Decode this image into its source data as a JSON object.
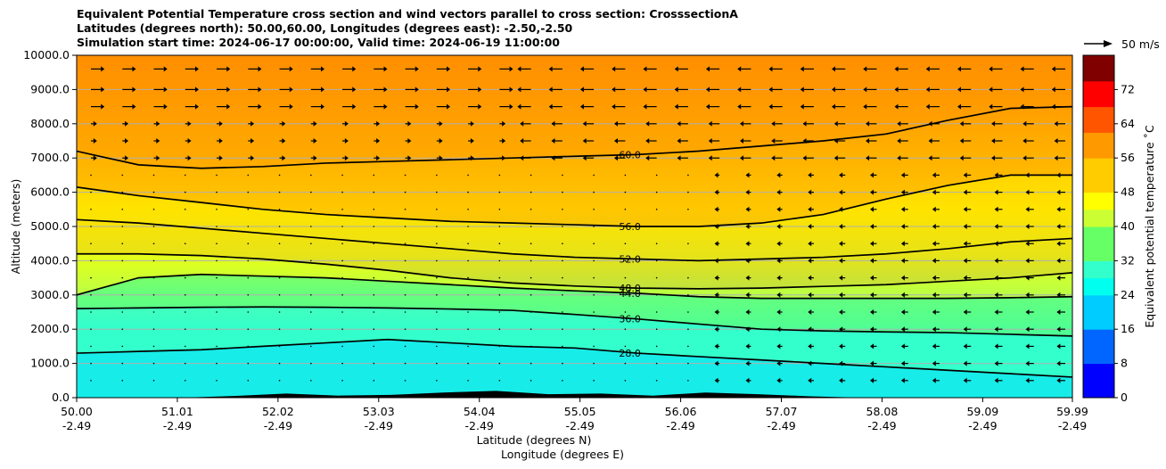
{
  "title_lines": [
    "Equivalent Potential Temperature cross section and wind vectors parallel to cross section: CrosssectionA",
    "Latitudes (degrees north): 50.00,60.00, Longitudes (degrees east): -2.50,-2.50",
    "Simulation start time: 2024-06-17 00:00:00, Valid time: 2024-06-19 11:00:00"
  ],
  "chart_data": {
    "type": "heatmap",
    "ylabel": "Altitude (meters)",
    "xlabel_lines": [
      "Latitude (degrees N)",
      "Longitude (degrees E)"
    ],
    "ylim": [
      0,
      10000
    ],
    "yticks": [
      "0.0",
      "1000.0",
      "2000.0",
      "3000.0",
      "4000.0",
      "5000.0",
      "6000.0",
      "7000.0",
      "8000.0",
      "9000.0",
      "10000.0"
    ],
    "ytick_values": [
      0,
      1000,
      2000,
      3000,
      4000,
      5000,
      6000,
      7000,
      8000,
      9000,
      10000
    ],
    "xlim": [
      50.0,
      59.99
    ],
    "xtick_lat_labels": [
      "50.00",
      "51.01",
      "52.02",
      "53.03",
      "54.04",
      "55.05",
      "56.06",
      "57.07",
      "58.08",
      "59.09",
      "59.99"
    ],
    "xtick_lat_values": [
      50.0,
      51.01,
      52.02,
      53.03,
      54.04,
      55.05,
      56.06,
      57.07,
      58.08,
      59.09,
      59.99
    ],
    "xtick_lon_labels": [
      "-2.49",
      "-2.49",
      "-2.49",
      "-2.49",
      "-2.49",
      "-2.49",
      "-2.49",
      "-2.49",
      "-2.49",
      "-2.49",
      "-2.49"
    ],
    "grid": "horizontal",
    "colorbar": {
      "label": "Equivalent potential temperature ˚C",
      "range": [
        0,
        80
      ],
      "tick_values": [
        0,
        8,
        16,
        24,
        32,
        40,
        48,
        56,
        64,
        72
      ],
      "tick_labels": [
        "0",
        "8",
        "16",
        "24",
        "32",
        "40",
        "48",
        "56",
        "64",
        "72"
      ]
    },
    "vector_key_label": "50 m/s",
    "contours": [
      {
        "value": 28,
        "label": "28.0",
        "altitude": [
          1300,
          1350,
          1400,
          1500,
          1600,
          1700,
          1600,
          1500,
          1450,
          1300,
          1200,
          1100,
          1000,
          900,
          800,
          700,
          600
        ]
      },
      {
        "value": 36,
        "label": "36.0",
        "altitude": [
          2600,
          2620,
          2640,
          2650,
          2640,
          2620,
          2590,
          2550,
          2430,
          2300,
          2150,
          2000,
          1950,
          1920,
          1900,
          1850,
          1800
        ]
      },
      {
        "value": 44,
        "label": "44.0",
        "altitude": [
          3000,
          3500,
          3600,
          3550,
          3500,
          3400,
          3300,
          3200,
          3120,
          3050,
          2950,
          2900,
          2900,
          2900,
          2900,
          2920,
          2950
        ]
      },
      {
        "value": 48,
        "label": "48.0",
        "altitude": [
          4200,
          4200,
          4150,
          4050,
          3900,
          3720,
          3500,
          3350,
          3260,
          3200,
          3180,
          3200,
          3250,
          3300,
          3400,
          3500,
          3650
        ]
      },
      {
        "value": 52,
        "label": "52.0",
        "altitude": [
          5200,
          5100,
          4950,
          4800,
          4650,
          4500,
          4350,
          4200,
          4100,
          4050,
          4000,
          4050,
          4100,
          4200,
          4350,
          4550,
          4650
        ]
      },
      {
        "value": 56,
        "label": "56.0",
        "altitude": [
          6150,
          5900,
          5700,
          5500,
          5350,
          5250,
          5150,
          5100,
          5050,
          5000,
          5000,
          5100,
          5350,
          5800,
          6200,
          6500,
          6500
        ]
      },
      {
        "value": 60,
        "label": "60.0",
        "altitude": [
          7200,
          6800,
          6700,
          6750,
          6850,
          6900,
          6950,
          7000,
          7050,
          7100,
          7200,
          7350,
          7500,
          7700,
          8100,
          8450,
          8500
        ]
      }
    ],
    "contour_x": [
      50.0,
      50.62,
      51.25,
      51.87,
      52.5,
      53.12,
      53.75,
      54.37,
      55.0,
      55.62,
      56.24,
      56.87,
      57.49,
      58.12,
      58.74,
      59.37,
      59.99
    ],
    "terrain_altitude": [
      0,
      0,
      0,
      50,
      120,
      60,
      80,
      150,
      200,
      100,
      120,
      60,
      150,
      100,
      40,
      0,
      0,
      0,
      0,
      0
    ]
  }
}
